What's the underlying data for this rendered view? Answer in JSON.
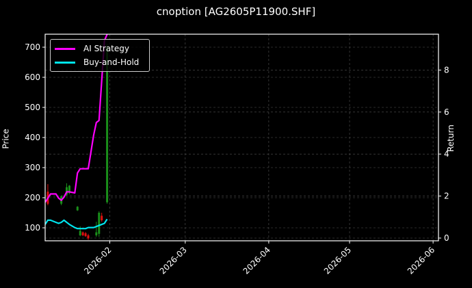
{
  "title": "cnoption [AG2605P11900.SHF]",
  "colors": {
    "background": "#000000",
    "ai_strategy": "#ff00ff",
    "buy_and_hold": "#00e5ee",
    "candle_up": "#1a8f1a",
    "candle_down": "#e01010",
    "grid": "#555555",
    "axis": "#ffffff"
  },
  "legend": {
    "items": [
      {
        "label": "AI Strategy",
        "color": "#ff00ff"
      },
      {
        "label": "Buy-and-Hold",
        "color": "#00e5ee"
      }
    ]
  },
  "axes": {
    "left_label": "Price",
    "right_label": "Return",
    "left_ticks": [
      "100",
      "200",
      "300",
      "400",
      "500",
      "600",
      "700"
    ],
    "right_ticks": [
      "0",
      "2",
      "4",
      "6",
      "8"
    ],
    "x_ticks": [
      "2026-02",
      "2026-03",
      "2026-04",
      "2026-05",
      "2026-06"
    ]
  },
  "chart_data": {
    "type": "line",
    "title": "cnoption [AG2605P11900.SHF]",
    "xlabel": "",
    "ylabel": "Price",
    "ylabel_right": "Return",
    "ylim": [
      58,
      740
    ],
    "ylim_right": [
      -0.1,
      9.6
    ],
    "xlim": [
      "2026-01-08",
      "2026-06-03"
    ],
    "grid": true,
    "legend_position": "upper left",
    "x_ticks": [
      "2026-02",
      "2026-03",
      "2026-04",
      "2026-05",
      "2026-06"
    ],
    "series": [
      {
        "name": "AI Strategy",
        "axis": "right",
        "x": [
          "2026-01-08",
          "2026-01-09",
          "2026-01-10",
          "2026-01-12",
          "2026-01-13",
          "2026-01-14",
          "2026-01-15",
          "2026-01-16",
          "2026-01-17",
          "2026-01-19",
          "2026-01-20",
          "2026-01-21",
          "2026-01-22",
          "2026-01-23",
          "2026-01-24",
          "2026-01-26",
          "2026-01-27",
          "2026-01-28",
          "2026-01-29",
          "2026-01-30",
          "2026-01-31"
        ],
        "values": [
          1.7,
          1.9,
          2.1,
          2.1,
          1.9,
          1.8,
          1.95,
          2.2,
          2.2,
          2.15,
          3.1,
          3.3,
          3.3,
          3.3,
          3.3,
          4.9,
          5.5,
          5.6,
          7.5,
          9.4,
          9.7
        ]
      },
      {
        "name": "Buy-and-Hold",
        "axis": "right",
        "x": [
          "2026-01-08",
          "2026-01-09",
          "2026-01-10",
          "2026-01-12",
          "2026-01-13",
          "2026-01-14",
          "2026-01-15",
          "2026-01-16",
          "2026-01-17",
          "2026-01-19",
          "2026-01-20",
          "2026-01-21",
          "2026-01-22",
          "2026-01-23",
          "2026-01-24",
          "2026-01-26",
          "2026-01-27",
          "2026-01-28",
          "2026-01-29",
          "2026-01-30",
          "2026-01-31"
        ],
        "values": [
          0.65,
          0.85,
          0.85,
          0.75,
          0.7,
          0.75,
          0.85,
          0.75,
          0.65,
          0.5,
          0.45,
          0.45,
          0.45,
          0.45,
          0.5,
          0.5,
          0.55,
          0.6,
          0.65,
          0.7,
          0.9
        ]
      }
    ],
    "candles": [
      {
        "x": "2026-01-09",
        "open": 220,
        "close": 180,
        "high": 245,
        "low": 175,
        "dir": "down"
      },
      {
        "x": "2026-01-14",
        "open": 180,
        "close": 205,
        "high": 208,
        "low": 175,
        "dir": "up"
      },
      {
        "x": "2026-01-16",
        "open": 210,
        "close": 235,
        "high": 248,
        "low": 205,
        "dir": "up"
      },
      {
        "x": "2026-01-17",
        "open": 215,
        "close": 240,
        "high": 242,
        "low": 212,
        "dir": "up"
      },
      {
        "x": "2026-01-20",
        "open": 158,
        "close": 170,
        "high": 172,
        "low": 156,
        "dir": "up"
      },
      {
        "x": "2026-01-21",
        "open": 75,
        "close": 90,
        "high": 105,
        "low": 72,
        "dir": "up"
      },
      {
        "x": "2026-01-22",
        "open": 85,
        "close": 75,
        "high": 88,
        "low": 72,
        "dir": "down"
      },
      {
        "x": "2026-01-23",
        "open": 82,
        "close": 72,
        "high": 86,
        "low": 70,
        "dir": "down"
      },
      {
        "x": "2026-01-24",
        "open": 75,
        "close": 65,
        "high": 80,
        "low": 60,
        "dir": "down"
      },
      {
        "x": "2026-01-27",
        "open": 75,
        "close": 85,
        "high": 120,
        "low": 70,
        "dir": "up"
      },
      {
        "x": "2026-01-28",
        "open": 80,
        "close": 150,
        "high": 155,
        "low": 70,
        "dir": "up"
      },
      {
        "x": "2026-01-29",
        "open": 140,
        "close": 125,
        "high": 150,
        "low": 120,
        "dir": "down"
      },
      {
        "x": "2026-01-31",
        "open": 185,
        "close": 700,
        "high": 710,
        "low": 180,
        "dir": "up"
      }
    ]
  }
}
